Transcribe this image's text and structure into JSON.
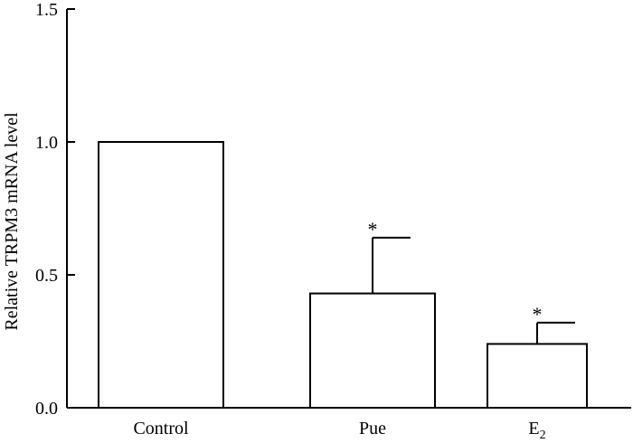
{
  "chart_data": {
    "type": "bar",
    "title": "",
    "xlabel": "",
    "ylabel": "Relative TRPM3 mRNA level",
    "ylim": [
      0,
      1.5
    ],
    "yticks": [
      "0.0",
      "0.5",
      "1.0",
      "1.5"
    ],
    "categories": [
      {
        "text": "Control",
        "sub": ""
      },
      {
        "text": "Pue",
        "sub": ""
      },
      {
        "text": "E",
        "sub": "2"
      }
    ],
    "values": [
      1.0,
      0.43,
      0.24
    ],
    "error_upper": [
      0.0,
      0.64,
      0.32
    ],
    "significance": [
      "",
      "*",
      "*"
    ],
    "bar_fill": "#ffffff",
    "bar_stroke": "#000000",
    "grid": false,
    "legend": "none"
  }
}
